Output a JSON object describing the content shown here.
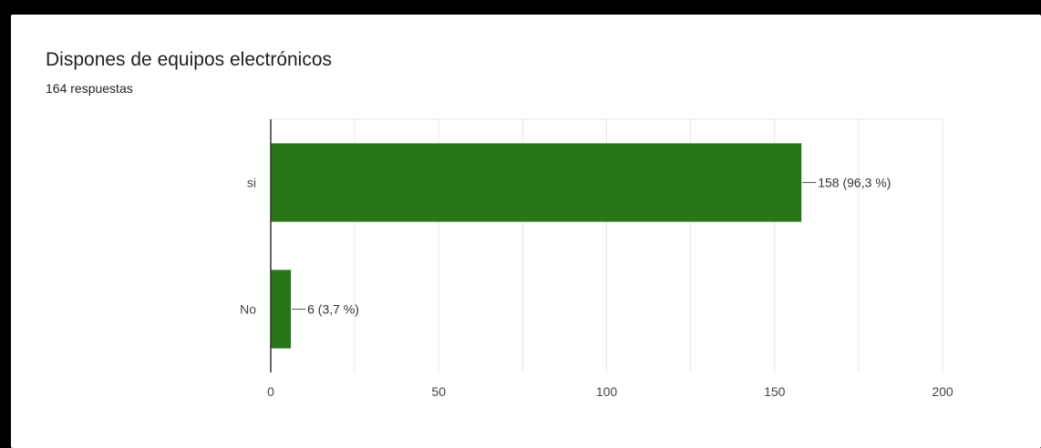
{
  "form": {
    "question": "Dispones de equipos electrónicos",
    "response_count": "164 respuestas"
  },
  "colors": {
    "bar": "#27771a",
    "grid": "#e6e6e6",
    "axis": "#333333",
    "frame": "#000000"
  },
  "chart_data": {
    "type": "bar",
    "orientation": "horizontal",
    "title": "Dispones de equipos electrónicos",
    "subtitle": "164 respuestas",
    "categories": [
      "si",
      "No"
    ],
    "values": [
      158,
      6
    ],
    "data_labels": [
      "158 (96,3 %)",
      "6 (3,7 %)"
    ],
    "xlim": [
      0,
      200
    ],
    "x_ticks": [
      0,
      50,
      100,
      150,
      200
    ],
    "x_tick_labels": [
      "0",
      "50",
      "100",
      "150",
      "200"
    ],
    "xlabel": "",
    "ylabel": "",
    "grid": true,
    "legend": "none"
  }
}
